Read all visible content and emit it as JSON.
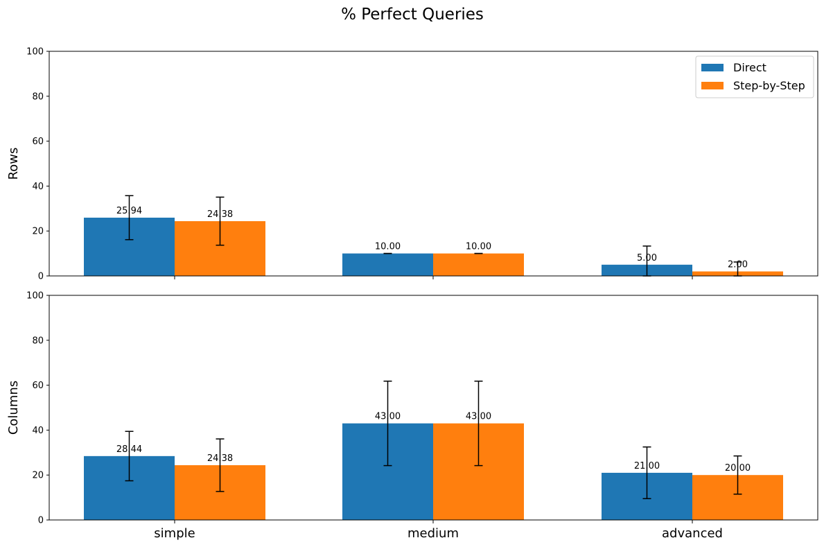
{
  "chart_data": {
    "type": "bar",
    "title": "% Perfect Queries",
    "categories": [
      "simple",
      "medium",
      "advanced"
    ],
    "ylim": [
      0,
      100
    ],
    "yticks": [
      "0",
      "20",
      "40",
      "60",
      "80",
      "100"
    ],
    "legend": {
      "placement": "top-right",
      "entries": [
        "Direct",
        "Step-by-Step"
      ]
    },
    "colors": {
      "Direct": "#1f77b4",
      "Step-by-Step": "#ff7f0e"
    },
    "grid": false,
    "panels": [
      {
        "ylabel": "Rows",
        "series": [
          {
            "name": "Direct",
            "values": [
              25.94,
              10.0,
              5.0
            ],
            "errors": [
              9.8,
              0.0,
              8.3
            ],
            "labels": [
              "25.94",
              "10.00",
              "5.00"
            ]
          },
          {
            "name": "Step-by-Step",
            "values": [
              24.38,
              10.0,
              2.0
            ],
            "errors": [
              10.7,
              0.0,
              4.2
            ],
            "labels": [
              "24.38",
              "10.00",
              "2.00"
            ]
          }
        ]
      },
      {
        "ylabel": "Columns",
        "series": [
          {
            "name": "Direct",
            "values": [
              28.44,
              43.0,
              21.0
            ],
            "errors": [
              11.0,
              18.8,
              11.5
            ],
            "labels": [
              "28.44",
              "43.00",
              "21.00"
            ]
          },
          {
            "name": "Step-by-Step",
            "values": [
              24.38,
              43.0,
              20.0
            ],
            "errors": [
              11.7,
              18.8,
              8.5
            ],
            "labels": [
              "24.38",
              "43.00",
              "20.00"
            ]
          }
        ]
      }
    ]
  }
}
